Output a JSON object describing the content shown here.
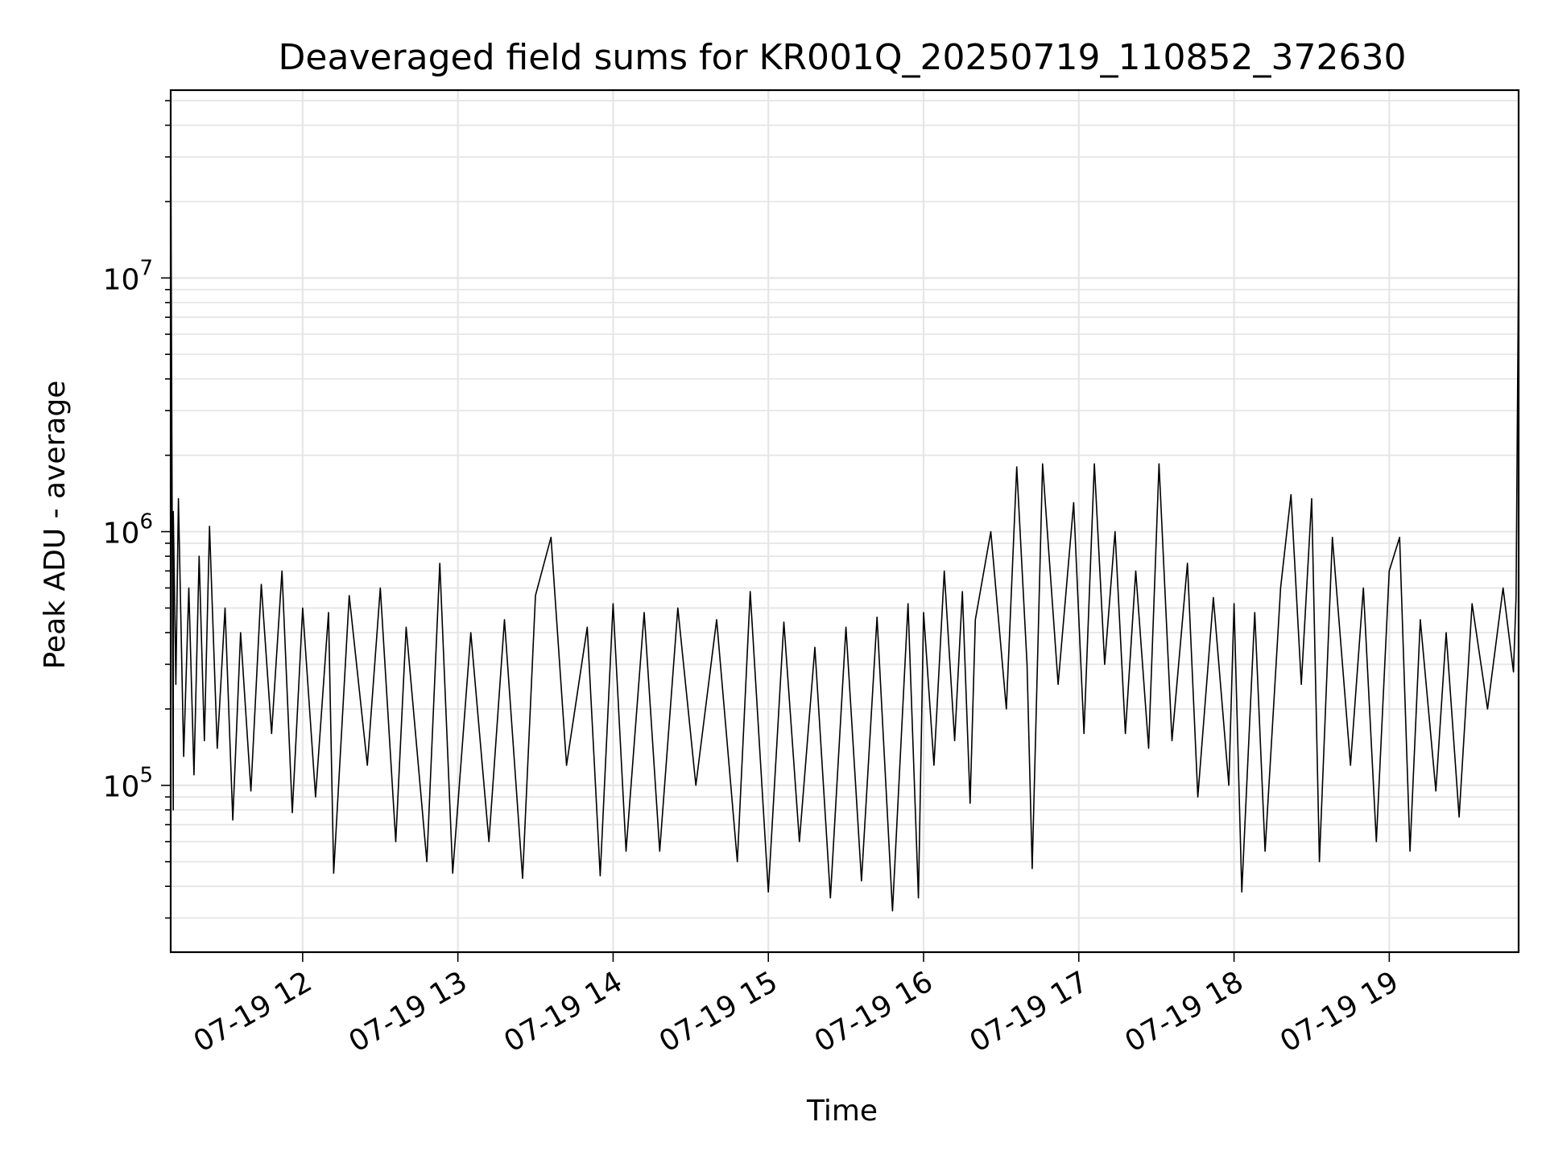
{
  "chart_data": {
    "type": "line",
    "title": "Deaveraged field sums for KR001Q_20250719_110852_372630",
    "xlabel": "Time",
    "ylabel": "Peak ADU - average",
    "x_range": [
      "2025-07-19 11:09",
      "2025-07-19 19:50"
    ],
    "y_scale": "log",
    "y_range": [
      22000,
      55000000
    ],
    "grid": true,
    "x_ticks": [
      {
        "value": "2025-07-19 12:00",
        "label": "07-19 12"
      },
      {
        "value": "2025-07-19 13:00",
        "label": "07-19 13"
      },
      {
        "value": "2025-07-19 14:00",
        "label": "07-19 14"
      },
      {
        "value": "2025-07-19 15:00",
        "label": "07-19 15"
      },
      {
        "value": "2025-07-19 16:00",
        "label": "07-19 16"
      },
      {
        "value": "2025-07-19 17:00",
        "label": "07-19 17"
      },
      {
        "value": "2025-07-19 18:00",
        "label": "07-19 18"
      },
      {
        "value": "2025-07-19 19:00",
        "label": "07-19 19"
      }
    ],
    "y_ticks": [
      {
        "value": 100000,
        "base": "10",
        "exp": "5"
      },
      {
        "value": 1000000,
        "base": "10",
        "exp": "6"
      },
      {
        "value": 10000000,
        "base": "10",
        "exp": "7"
      }
    ],
    "series": [
      {
        "color": "#000000",
        "points": [
          [
            "2025-07-19 11:09",
            400000
          ],
          [
            "2025-07-19 11:09",
            38000000
          ],
          [
            "2025-07-19 11:10",
            80000
          ],
          [
            "2025-07-19 11:10",
            1200000
          ],
          [
            "2025-07-19 11:11",
            250000
          ],
          [
            "2025-07-19 11:12",
            1350000
          ],
          [
            "2025-07-19 11:14",
            130000
          ],
          [
            "2025-07-19 11:16",
            600000
          ],
          [
            "2025-07-19 11:18",
            110000
          ],
          [
            "2025-07-19 11:20",
            800000
          ],
          [
            "2025-07-19 11:22",
            150000
          ],
          [
            "2025-07-19 11:24",
            1050000
          ],
          [
            "2025-07-19 11:27",
            140000
          ],
          [
            "2025-07-19 11:30",
            500000
          ],
          [
            "2025-07-19 11:33",
            73000
          ],
          [
            "2025-07-19 11:36",
            400000
          ],
          [
            "2025-07-19 11:40",
            95000
          ],
          [
            "2025-07-19 11:44",
            620000
          ],
          [
            "2025-07-19 11:48",
            160000
          ],
          [
            "2025-07-19 11:52",
            700000
          ],
          [
            "2025-07-19 11:56",
            78000
          ],
          [
            "2025-07-19 12:00",
            500000
          ],
          [
            "2025-07-19 12:05",
            90000
          ],
          [
            "2025-07-19 12:10",
            480000
          ],
          [
            "2025-07-19 12:12",
            45000
          ],
          [
            "2025-07-19 12:18",
            560000
          ],
          [
            "2025-07-19 12:25",
            120000
          ],
          [
            "2025-07-19 12:30",
            600000
          ],
          [
            "2025-07-19 12:36",
            60000
          ],
          [
            "2025-07-19 12:40",
            420000
          ],
          [
            "2025-07-19 12:48",
            50000
          ],
          [
            "2025-07-19 12:53",
            750000
          ],
          [
            "2025-07-19 12:58",
            45000
          ],
          [
            "2025-07-19 13:05",
            400000
          ],
          [
            "2025-07-19 13:12",
            60000
          ],
          [
            "2025-07-19 13:18",
            450000
          ],
          [
            "2025-07-19 13:25",
            43000
          ],
          [
            "2025-07-19 13:30",
            560000
          ],
          [
            "2025-07-19 13:36",
            950000
          ],
          [
            "2025-07-19 13:42",
            120000
          ],
          [
            "2025-07-19 13:50",
            420000
          ],
          [
            "2025-07-19 13:55",
            44000
          ],
          [
            "2025-07-19 14:00",
            520000
          ],
          [
            "2025-07-19 14:05",
            55000
          ],
          [
            "2025-07-19 14:12",
            480000
          ],
          [
            "2025-07-19 14:18",
            55000
          ],
          [
            "2025-07-19 14:25",
            500000
          ],
          [
            "2025-07-19 14:32",
            100000
          ],
          [
            "2025-07-19 14:40",
            450000
          ],
          [
            "2025-07-19 14:48",
            50000
          ],
          [
            "2025-07-19 14:53",
            580000
          ],
          [
            "2025-07-19 15:00",
            38000
          ],
          [
            "2025-07-19 15:06",
            440000
          ],
          [
            "2025-07-19 15:12",
            60000
          ],
          [
            "2025-07-19 15:18",
            350000
          ],
          [
            "2025-07-19 15:24",
            36000
          ],
          [
            "2025-07-19 15:30",
            420000
          ],
          [
            "2025-07-19 15:36",
            42000
          ],
          [
            "2025-07-19 15:42",
            460000
          ],
          [
            "2025-07-19 15:48",
            32000
          ],
          [
            "2025-07-19 15:54",
            520000
          ],
          [
            "2025-07-19 15:58",
            36000
          ],
          [
            "2025-07-19 16:00",
            480000
          ],
          [
            "2025-07-19 16:04",
            120000
          ],
          [
            "2025-07-19 16:08",
            700000
          ],
          [
            "2025-07-19 16:12",
            150000
          ],
          [
            "2025-07-19 16:15",
            580000
          ],
          [
            "2025-07-19 16:18",
            85000
          ],
          [
            "2025-07-19 16:20",
            450000
          ],
          [
            "2025-07-19 16:26",
            1000000
          ],
          [
            "2025-07-19 16:32",
            200000
          ],
          [
            "2025-07-19 16:36",
            1800000
          ],
          [
            "2025-07-19 16:40",
            300000
          ],
          [
            "2025-07-19 16:42",
            47000
          ],
          [
            "2025-07-19 16:46",
            1850000
          ],
          [
            "2025-07-19 16:52",
            250000
          ],
          [
            "2025-07-19 16:58",
            1300000
          ],
          [
            "2025-07-19 17:02",
            160000
          ],
          [
            "2025-07-19 17:06",
            1850000
          ],
          [
            "2025-07-19 17:10",
            300000
          ],
          [
            "2025-07-19 17:14",
            1000000
          ],
          [
            "2025-07-19 17:18",
            160000
          ],
          [
            "2025-07-19 17:22",
            700000
          ],
          [
            "2025-07-19 17:27",
            140000
          ],
          [
            "2025-07-19 17:31",
            1850000
          ],
          [
            "2025-07-19 17:36",
            150000
          ],
          [
            "2025-07-19 17:42",
            750000
          ],
          [
            "2025-07-19 17:46",
            90000
          ],
          [
            "2025-07-19 17:52",
            550000
          ],
          [
            "2025-07-19 17:58",
            100000
          ],
          [
            "2025-07-19 18:00",
            520000
          ],
          [
            "2025-07-19 18:03",
            38000
          ],
          [
            "2025-07-19 18:08",
            480000
          ],
          [
            "2025-07-19 18:12",
            55000
          ],
          [
            "2025-07-19 18:18",
            600000
          ],
          [
            "2025-07-19 18:22",
            1400000
          ],
          [
            "2025-07-19 18:26",
            250000
          ],
          [
            "2025-07-19 18:30",
            1350000
          ],
          [
            "2025-07-19 18:33",
            50000
          ],
          [
            "2025-07-19 18:38",
            950000
          ],
          [
            "2025-07-19 18:45",
            120000
          ],
          [
            "2025-07-19 18:50",
            600000
          ],
          [
            "2025-07-19 18:55",
            60000
          ],
          [
            "2025-07-19 19:00",
            700000
          ],
          [
            "2025-07-19 19:04",
            950000
          ],
          [
            "2025-07-19 19:08",
            55000
          ],
          [
            "2025-07-19 19:12",
            450000
          ],
          [
            "2025-07-19 19:18",
            95000
          ],
          [
            "2025-07-19 19:22",
            400000
          ],
          [
            "2025-07-19 19:27",
            75000
          ],
          [
            "2025-07-19 19:32",
            520000
          ],
          [
            "2025-07-19 19:38",
            200000
          ],
          [
            "2025-07-19 19:44",
            600000
          ],
          [
            "2025-07-19 19:48",
            280000
          ],
          [
            "2025-07-19 19:49",
            550000
          ],
          [
            "2025-07-19 19:50",
            12500000
          ],
          [
            "2025-07-19 19:50",
            950000
          ]
        ]
      }
    ]
  }
}
